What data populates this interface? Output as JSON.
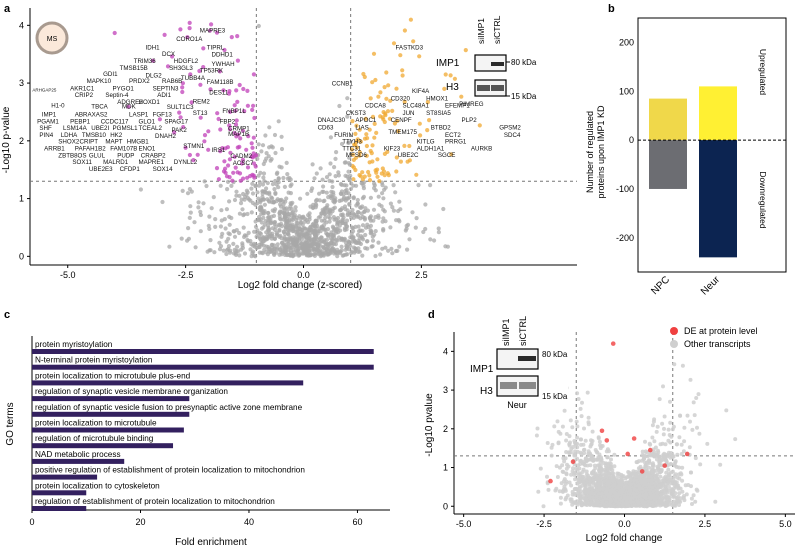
{
  "panels": {
    "a": "a",
    "b": "b",
    "c": "c",
    "d": "d"
  },
  "colors": {
    "gray": "#a8a8a8",
    "magenta": "#c040b8",
    "orange": "#f0a830",
    "npc_up": "#f0d84a",
    "npc_down": "#6c6d72",
    "neur_up": "#fff033",
    "neur_down": "#0c2451",
    "go_bar": "#33205f",
    "red": "#f04040",
    "lightgray": "#cfcfcf"
  },
  "chart_data": [
    {
      "id": "a",
      "type": "scatter",
      "xlabel": "Log2 fold change (z-scored)",
      "ylabel": "-Log10 p-value",
      "xlim": [
        -5.8,
        5.8
      ],
      "ylim": [
        -0.15,
        4.3
      ],
      "xticks": [
        -5.0,
        -2.5,
        0.0,
        2.5
      ],
      "yticks": [
        0,
        1,
        2,
        3,
        4
      ],
      "vlines": [
        -1,
        1
      ],
      "hline": 1.3,
      "badge": "MS",
      "labels_left": [
        {
          "t": "MAPRE3",
          "x": -2.2,
          "y": 3.88
        },
        {
          "t": "CORO1A",
          "x": -2.7,
          "y": 3.73
        },
        {
          "t": "IDH1",
          "x": -3.35,
          "y": 3.58
        },
        {
          "t": "TIPRL",
          "x": -2.05,
          "y": 3.58
        },
        {
          "t": "DCX",
          "x": -3.0,
          "y": 3.47
        },
        {
          "t": "DDHD1",
          "x": -1.95,
          "y": 3.46
        },
        {
          "t": "TRIM36",
          "x": -3.6,
          "y": 3.35
        },
        {
          "t": "HDGFL2",
          "x": -2.75,
          "y": 3.35
        },
        {
          "t": "YWHAH",
          "x": -1.95,
          "y": 3.3
        },
        {
          "t": "TMSB15B",
          "x": -3.9,
          "y": 3.23
        },
        {
          "t": "SH3GL3",
          "x": -2.85,
          "y": 3.23
        },
        {
          "t": "TP53RK",
          "x": -2.2,
          "y": 3.18
        },
        {
          "t": "GDI1",
          "x": -4.25,
          "y": 3.12
        },
        {
          "t": "DLG2",
          "x": -3.35,
          "y": 3.1
        },
        {
          "t": "TUBB4A",
          "x": -2.6,
          "y": 3.05
        },
        {
          "t": "MAPK10",
          "x": -4.6,
          "y": 3.0
        },
        {
          "t": "PRDX2",
          "x": -3.7,
          "y": 3.0
        },
        {
          "t": "RAB6B",
          "x": -3.0,
          "y": 3.0
        },
        {
          "t": "FAM118B",
          "x": -2.05,
          "y": 2.98
        },
        {
          "t": "AKR1C1",
          "x": -4.95,
          "y": 2.87
        },
        {
          "t": "PYGO1",
          "x": -4.05,
          "y": 2.87
        },
        {
          "t": "SEPTIN3",
          "x": -3.2,
          "y": 2.87
        },
        {
          "t": "ARHGAP25",
          "x": -5.75,
          "y": 2.85
        },
        {
          "t": "CRIP2",
          "x": -4.85,
          "y": 2.76
        },
        {
          "t": "Septin-4",
          "x": -4.2,
          "y": 2.76
        },
        {
          "t": "ADI1",
          "x": -3.1,
          "y": 2.76
        },
        {
          "t": "DES11",
          "x": -2.0,
          "y": 2.8
        },
        {
          "t": "ADGRE2",
          "x": -3.95,
          "y": 2.64
        },
        {
          "t": "HOXD1",
          "x": -3.5,
          "y": 2.64
        },
        {
          "t": "REM2",
          "x": -2.35,
          "y": 2.65
        },
        {
          "t": "H1-0",
          "x": -5.35,
          "y": 2.58
        },
        {
          "t": "TBCA",
          "x": -4.5,
          "y": 2.56
        },
        {
          "t": "MDK",
          "x": -3.85,
          "y": 2.56
        },
        {
          "t": "SULT1C3",
          "x": -2.9,
          "y": 2.55
        },
        {
          "t": "ST13",
          "x": -2.35,
          "y": 2.45
        },
        {
          "t": "IMP1",
          "x": -5.55,
          "y": 2.42
        },
        {
          "t": "ABRAXAS2",
          "x": -4.85,
          "y": 2.42
        },
        {
          "t": "LASP1",
          "x": -3.7,
          "y": 2.42
        },
        {
          "t": "FGF13",
          "x": -3.2,
          "y": 2.42
        },
        {
          "t": "FNBP1L",
          "x": -1.72,
          "y": 2.48
        },
        {
          "t": "PGAM1",
          "x": -5.65,
          "y": 2.3
        },
        {
          "t": "PEBP1",
          "x": -4.95,
          "y": 2.3
        },
        {
          "t": "CCDC117",
          "x": -4.3,
          "y": 2.3
        },
        {
          "t": "GLO1",
          "x": -3.5,
          "y": 2.3
        },
        {
          "t": "SPAG17",
          "x": -2.95,
          "y": 2.3
        },
        {
          "t": "FBP2",
          "x": -1.78,
          "y": 2.3
        },
        {
          "t": "SHF",
          "x": -5.6,
          "y": 2.19
        },
        {
          "t": "LSM14A",
          "x": -5.1,
          "y": 2.19
        },
        {
          "t": "UBE2I",
          "x": -4.5,
          "y": 2.19
        },
        {
          "t": "PGMSL1",
          "x": -4.05,
          "y": 2.19
        },
        {
          "t": "TCEAL2",
          "x": -3.5,
          "y": 2.19
        },
        {
          "t": "PAK2",
          "x": -2.8,
          "y": 2.15
        },
        {
          "t": "CRMP1",
          "x": -1.6,
          "y": 2.18
        },
        {
          "t": "PIN4",
          "x": -5.6,
          "y": 2.07
        },
        {
          "t": "LDHA",
          "x": -5.15,
          "y": 2.07
        },
        {
          "t": "TMSB10",
          "x": -4.7,
          "y": 2.07
        },
        {
          "t": "HK2",
          "x": -4.1,
          "y": 2.07
        },
        {
          "t": "DNAH2",
          "x": -3.15,
          "y": 2.05
        },
        {
          "t": "MAP1B",
          "x": -1.6,
          "y": 2.08
        },
        {
          "t": "SHOX2",
          "x": -5.2,
          "y": 1.95
        },
        {
          "t": "CRIPT",
          "x": -4.75,
          "y": 1.95
        },
        {
          "t": "MAPT",
          "x": -4.2,
          "y": 1.95
        },
        {
          "t": "HMGB1",
          "x": -3.75,
          "y": 1.95
        },
        {
          "t": "ARRB1",
          "x": -5.5,
          "y": 1.83
        },
        {
          "t": "PAFAH1B2",
          "x": -4.85,
          "y": 1.83
        },
        {
          "t": "FAM107B",
          "x": -4.1,
          "y": 1.83
        },
        {
          "t": "ENO1",
          "x": -3.5,
          "y": 1.83
        },
        {
          "t": "STMN1",
          "x": -2.55,
          "y": 1.88
        },
        {
          "t": "ZBTB8OS",
          "x": -5.2,
          "y": 1.71
        },
        {
          "t": "GLUL",
          "x": -4.55,
          "y": 1.71
        },
        {
          "t": "PUDP",
          "x": -3.95,
          "y": 1.71
        },
        {
          "t": "IRS1",
          "x": -1.95,
          "y": 1.81
        },
        {
          "t": "CRABP2",
          "x": -3.45,
          "y": 1.71
        },
        {
          "t": "CADM2",
          "x": -1.55,
          "y": 1.7
        },
        {
          "t": "SOX11",
          "x": -4.9,
          "y": 1.6
        },
        {
          "t": "MALRD1",
          "x": -4.25,
          "y": 1.6
        },
        {
          "t": "MAPRE1",
          "x": -3.5,
          "y": 1.6
        },
        {
          "t": "DYNLL2",
          "x": -2.75,
          "y": 1.6
        },
        {
          "t": "ACSC7",
          "x": -1.5,
          "y": 1.58
        },
        {
          "t": "UBE2E3",
          "x": -4.55,
          "y": 1.48
        },
        {
          "t": "CFDP1",
          "x": -3.9,
          "y": 1.48
        },
        {
          "t": "SOX14",
          "x": -3.2,
          "y": 1.48
        }
      ],
      "labels_right": [
        {
          "t": "FASTKD3",
          "x": 1.95,
          "y": 3.58
        },
        {
          "t": "CCNB1",
          "x": 0.6,
          "y": 2.96
        },
        {
          "t": "KIF4A",
          "x": 2.3,
          "y": 2.83
        },
        {
          "t": "CD320",
          "x": 1.85,
          "y": 2.7
        },
        {
          "t": "HMOX1",
          "x": 2.6,
          "y": 2.7
        },
        {
          "t": "PIMREG",
          "x": 3.3,
          "y": 2.6
        },
        {
          "t": "CDCA8",
          "x": 1.3,
          "y": 2.58
        },
        {
          "t": "SLC48A1",
          "x": 2.1,
          "y": 2.58
        },
        {
          "t": "EFEMP1",
          "x": 3.0,
          "y": 2.58
        },
        {
          "t": "CKST3",
          "x": 0.9,
          "y": 2.45
        },
        {
          "t": "JUN",
          "x": 2.1,
          "y": 2.45
        },
        {
          "t": "ST8SIA5",
          "x": 2.6,
          "y": 2.45
        },
        {
          "t": "DNAJC30",
          "x": 0.3,
          "y": 2.33
        },
        {
          "t": "APOC1",
          "x": 1.1,
          "y": 2.33
        },
        {
          "t": "CENPF",
          "x": 1.85,
          "y": 2.33
        },
        {
          "t": "PLP2",
          "x": 3.35,
          "y": 2.33
        },
        {
          "t": "GPSM2",
          "x": 4.15,
          "y": 2.2
        },
        {
          "t": "CD63",
          "x": 0.3,
          "y": 2.2
        },
        {
          "t": "LIAS",
          "x": 1.1,
          "y": 2.2
        },
        {
          "t": "BTBD2",
          "x": 2.7,
          "y": 2.2
        },
        {
          "t": "TMEM175",
          "x": 1.8,
          "y": 2.12
        },
        {
          "t": "FURIN",
          "x": 0.65,
          "y": 2.07
        },
        {
          "t": "ECT2",
          "x": 3.0,
          "y": 2.07
        },
        {
          "t": "SDC4",
          "x": 4.25,
          "y": 2.07
        },
        {
          "t": "TTYH3",
          "x": 0.82,
          "y": 1.95
        },
        {
          "t": "KITLG",
          "x": 2.4,
          "y": 1.95
        },
        {
          "t": "PRRG1",
          "x": 3.0,
          "y": 1.95
        },
        {
          "t": "TTC31",
          "x": 0.82,
          "y": 1.83
        },
        {
          "t": "KIF23",
          "x": 1.7,
          "y": 1.83
        },
        {
          "t": "ALDH1A1",
          "x": 2.4,
          "y": 1.83
        },
        {
          "t": "AURKB",
          "x": 3.55,
          "y": 1.83
        },
        {
          "t": "MFSD6",
          "x": 0.9,
          "y": 1.72
        },
        {
          "t": "UBE2C",
          "x": 2.0,
          "y": 1.72
        },
        {
          "t": "SGCE",
          "x": 2.85,
          "y": 1.72
        }
      ],
      "inset": {
        "lanes": [
          "siIMP1",
          "siCTRL"
        ],
        "rows": [
          "IMP1",
          "H3"
        ],
        "markers": [
          "80 kDa",
          "15 kDa"
        ]
      }
    },
    {
      "id": "b",
      "type": "bar",
      "categories": [
        "NPC",
        "Neur"
      ],
      "up_values": [
        85,
        110
      ],
      "down_values": [
        -100,
        -240
      ],
      "ylabel": "Number of regulated\nproteins upon IMP1 KD",
      "ylim": [
        -270,
        250
      ],
      "yticks": [
        -200,
        -100,
        0,
        100,
        200
      ],
      "side_up": "Upregulated",
      "side_down": "Downregulated"
    },
    {
      "id": "c",
      "type": "bar",
      "orientation": "horizontal",
      "xlabel": "Fold enrichment",
      "ylabel": "GO terms",
      "xlim": [
        0,
        66
      ],
      "xticks": [
        0,
        20,
        40,
        60
      ],
      "terms": [
        "protein myristoylation",
        "N-terminal protein myristoylation",
        "protein localization to microtubule plus-end",
        "regulation of synaptic vesicle membrane organization",
        "regulation of synaptic vesicle fusion to presynaptic active zone membrane",
        "protein localization to microtubule",
        "regulation of microtubule binding",
        "NAD metabolic process",
        "positive regulation of establishment of protein localization to mitochondrion",
        "protein localization to cytoskeleton",
        "regulation of establishment of protein localization to mitochondrion"
      ],
      "values": [
        63,
        63,
        50,
        29,
        29,
        28,
        26,
        17,
        12,
        10,
        10
      ]
    },
    {
      "id": "d",
      "type": "scatter",
      "xlabel": "Log2 fold change",
      "ylabel": "-Log10 pvalue",
      "xlim": [
        -5.3,
        5.3
      ],
      "ylim": [
        -0.2,
        4.5
      ],
      "xticks": [
        -5.0,
        -2.5,
        0.0,
        2.5,
        5.0
      ],
      "yticks": [
        0,
        1,
        2,
        3,
        4
      ],
      "vlines": [
        -1.5,
        1.5
      ],
      "hline": 1.3,
      "legend": [
        "DE at protein level",
        "Other transcripts"
      ],
      "inset": {
        "lanes": [
          "siIMP1",
          "siCTRL"
        ],
        "rows": [
          "IMP1",
          "H3"
        ],
        "markers": [
          "80 kDa",
          "15 kDa"
        ],
        "caption": "Neur"
      }
    }
  ]
}
